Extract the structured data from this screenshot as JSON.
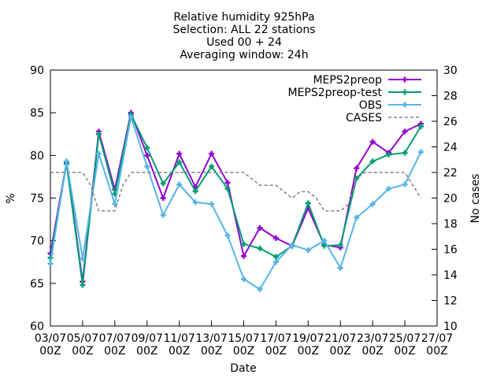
{
  "chart_data": {
    "type": "line",
    "title": [
      "Relative humidity 925hPa",
      "Selection: ALL      22 stations",
      "Used 00 + 24",
      "Averaging window: 24h"
    ],
    "xlabel": "Date",
    "ylabel": "%",
    "y2label": "No cases",
    "ylim": [
      60,
      90
    ],
    "y2lim": [
      10,
      30
    ],
    "yticks": [
      60,
      65,
      70,
      75,
      80,
      85,
      90
    ],
    "y2ticks": [
      10,
      12,
      14,
      16,
      18,
      20,
      22,
      24,
      26,
      28,
      30
    ],
    "xticks": [
      {
        "i": 0,
        "line1": "03/07",
        "line2": "00Z"
      },
      {
        "i": 4,
        "line1": "05/07",
        "line2": "00Z"
      },
      {
        "i": 8,
        "line1": "07/07",
        "line2": "00Z"
      },
      {
        "i": 12,
        "line1": "09/07",
        "line2": "00Z"
      },
      {
        "i": 16,
        "line1": "11/07",
        "line2": "00Z"
      },
      {
        "i": 20,
        "line1": "13/07",
        "line2": "00Z"
      },
      {
        "i": 24,
        "line1": "15/07",
        "line2": "00Z"
      },
      {
        "i": 28,
        "line1": "17/07",
        "line2": "00Z"
      },
      {
        "i": 32,
        "line1": "19/07",
        "line2": "00Z"
      },
      {
        "i": 36,
        "line1": "21/07",
        "line2": "00Z"
      },
      {
        "i": 40,
        "line1": "23/07",
        "line2": "00Z"
      },
      {
        "i": 44,
        "line1": "25/07",
        "line2": "00Z"
      },
      {
        "i": 48,
        "line1": "27/07",
        "line2": "00Z"
      }
    ],
    "x_index_range": [
      0,
      48
    ],
    "legend_position": "top-right",
    "grid": false,
    "series": [
      {
        "name": "MEPS2preop",
        "color": "#9400d3",
        "marker": "plus",
        "axis": "y1",
        "x_index": [
          0,
          2,
          4,
          6,
          8,
          10,
          12,
          14,
          16,
          18,
          20,
          22,
          24,
          26,
          28,
          30,
          32,
          34,
          36,
          38,
          40,
          42,
          44,
          46
        ],
        "values": [
          68.5,
          79.2,
          65.2,
          82.8,
          76.0,
          85.0,
          80.0,
          75.0,
          80.2,
          76.3,
          80.2,
          76.8,
          68.2,
          71.5,
          70.3,
          69.4,
          73.8,
          69.5,
          69.2,
          78.5,
          81.6,
          80.3,
          82.8,
          83.7
        ]
      },
      {
        "name": "MEPS2preop-test",
        "color": "#009e73",
        "marker": "plus",
        "axis": "y1",
        "x_index": [
          0,
          2,
          4,
          6,
          8,
          10,
          12,
          14,
          16,
          18,
          20,
          22,
          24,
          26,
          28,
          30,
          32,
          34,
          36,
          38,
          40,
          42,
          44,
          46
        ],
        "values": [
          68.0,
          79.0,
          64.8,
          82.5,
          75.5,
          84.8,
          80.9,
          76.7,
          79.2,
          75.8,
          78.7,
          76.1,
          69.6,
          69.1,
          68.1,
          69.4,
          74.4,
          69.4,
          69.5,
          77.3,
          79.3,
          80.1,
          80.3,
          83.4
        ]
      },
      {
        "name": "OBS",
        "color": "#56b4e9",
        "marker": "plus",
        "axis": "y1",
        "x_index": [
          0,
          2,
          4,
          6,
          8,
          10,
          12,
          14,
          16,
          18,
          20,
          22,
          24,
          26,
          28,
          30,
          32,
          34,
          36,
          38,
          40,
          42,
          44,
          46
        ],
        "values": [
          67.3,
          79.3,
          67.9,
          80.2,
          74.3,
          84.5,
          78.7,
          73.0,
          76.6,
          74.5,
          74.3,
          70.6,
          65.5,
          64.3,
          67.5,
          69.5,
          68.9,
          70.0,
          66.8,
          72.7,
          74.3,
          76.1,
          76.6,
          80.4
        ]
      },
      {
        "name": "CASES",
        "color": "#808080",
        "dashed": true,
        "axis": "y2",
        "x_index": [
          0,
          4,
          5,
          6,
          8,
          9,
          10,
          12,
          24,
          26,
          28,
          30,
          31,
          32,
          33,
          34,
          36,
          37,
          38,
          39,
          40,
          44,
          46
        ],
        "values": [
          22,
          22,
          21,
          19,
          19,
          21,
          22,
          22,
          22,
          21,
          21,
          20,
          20.5,
          20.5,
          20,
          19,
          19,
          19.5,
          21.5,
          22,
          22,
          22,
          20
        ]
      }
    ]
  }
}
